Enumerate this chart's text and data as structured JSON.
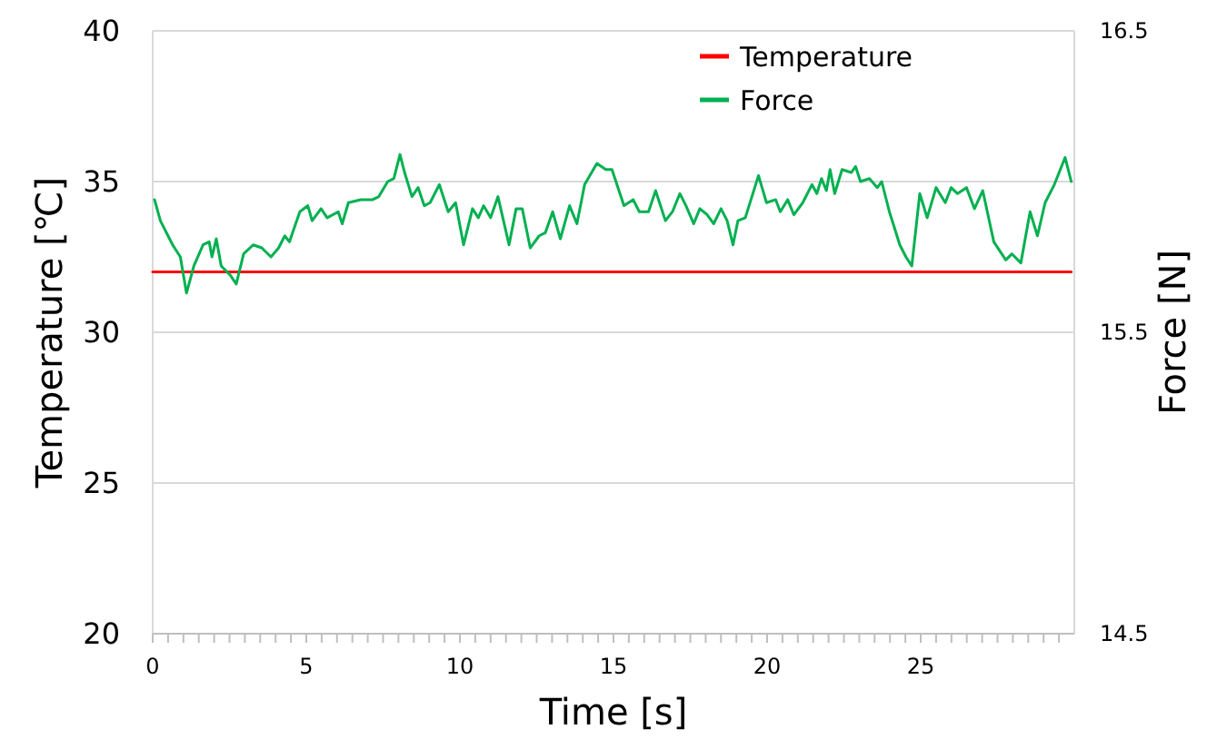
{
  "chart_data": {
    "type": "line",
    "xlabel": "Time [s]",
    "ylabel": "Temperature [℃]",
    "y2label": "Force [N]",
    "xlim": [
      0,
      30
    ],
    "xticks": [
      0,
      {
        "value": 0.5,
        "label": null
      },
      {
        "value": 1,
        "label": null
      },
      {
        "value": 1.5,
        "label": null
      },
      {
        "value": 2,
        "label": null
      },
      {
        "value": 2.5,
        "label": null
      },
      {
        "value": 3,
        "label": null
      },
      {
        "value": 3.5,
        "label": null
      },
      {
        "value": 4,
        "label": null
      },
      {
        "value": 4.5,
        "label": null
      },
      5,
      {
        "value": 5.5,
        "label": null
      },
      {
        "value": 6,
        "label": null
      },
      {
        "value": 6.5,
        "label": null
      },
      {
        "value": 7,
        "label": null
      },
      {
        "value": 7.5,
        "label": null
      },
      {
        "value": 8,
        "label": null
      },
      {
        "value": 8.5,
        "label": null
      },
      {
        "value": 9,
        "label": null
      },
      {
        "value": 9.5,
        "label": null
      },
      10,
      {
        "value": 10.5,
        "label": null
      },
      {
        "value": 11,
        "label": null
      },
      {
        "value": 11.5,
        "label": null
      },
      {
        "value": 12,
        "label": null
      },
      {
        "value": 12.5,
        "label": null
      },
      {
        "value": 13,
        "label": null
      },
      {
        "value": 13.5,
        "label": null
      },
      {
        "value": 14,
        "label": null
      },
      {
        "value": 14.5,
        "label": null
      },
      15,
      {
        "value": 15.5,
        "label": null
      },
      {
        "value": 16,
        "label": null
      },
      {
        "value": 16.5,
        "label": null
      },
      {
        "value": 17,
        "label": null
      },
      {
        "value": 17.5,
        "label": null
      },
      {
        "value": 18,
        "label": null
      },
      {
        "value": 18.5,
        "label": null
      },
      {
        "value": 19,
        "label": null
      },
      {
        "value": 19.5,
        "label": null
      },
      20,
      {
        "value": 20.5,
        "label": null
      },
      {
        "value": 21,
        "label": null
      },
      {
        "value": 21.5,
        "label": null
      },
      {
        "value": 22,
        "label": null
      },
      {
        "value": 22.5,
        "label": null
      },
      {
        "value": 23,
        "label": null
      },
      {
        "value": 23.5,
        "label": null
      },
      {
        "value": 24,
        "label": null
      },
      {
        "value": 24.5,
        "label": null
      },
      25,
      {
        "value": 25.5,
        "label": null
      },
      {
        "value": 26,
        "label": null
      },
      {
        "value": 26.5,
        "label": null
      },
      {
        "value": 27,
        "label": null
      },
      {
        "value": 27.5,
        "label": null
      },
      {
        "value": 28,
        "label": null
      },
      {
        "value": 28.5,
        "label": null
      },
      {
        "value": 29,
        "label": null
      },
      {
        "value": 29.5,
        "label": null
      }
    ],
    "ylim": [
      20,
      40
    ],
    "yticks": [
      20,
      25,
      30,
      35,
      40
    ],
    "y2lim": [
      14.5,
      16.5
    ],
    "y2ticks": [
      14.5,
      15.5,
      16.5
    ],
    "grid": "y",
    "legend": "top right",
    "marker": "none",
    "line_style": "solid",
    "series": [
      {
        "name": "Temperature",
        "color": "#ff0000",
        "x": [
          0,
          5,
          10,
          15,
          20,
          25,
          29.9
        ],
        "values": [
          32,
          32,
          32,
          32,
          32,
          32,
          32
        ]
      },
      {
        "name": "Force",
        "color": "#00b050",
        "axis": "y2",
        "x": [
          0.06,
          0.25,
          0.65,
          0.9,
          1.1,
          1.34,
          1.64,
          1.84,
          1.93,
          2.07,
          2.23,
          2.52,
          2.72,
          2.96,
          3.27,
          3.55,
          3.85,
          4.1,
          4.3,
          4.45,
          4.79,
          5.05,
          5.19,
          5.48,
          5.68,
          6.04,
          6.17,
          6.37,
          6.77,
          7.16,
          7.36,
          7.65,
          7.85,
          8.05,
          8.2,
          8.44,
          8.64,
          8.84,
          9.03,
          9.33,
          9.62,
          9.86,
          10.12,
          10.41,
          10.6,
          10.77,
          11.0,
          11.24,
          11.6,
          11.83,
          12.03,
          12.29,
          12.58,
          12.78,
          13.02,
          13.27,
          13.57,
          13.81,
          14.06,
          14.46,
          14.75,
          14.95,
          15.34,
          15.64,
          15.84,
          16.14,
          16.37,
          16.69,
          16.92,
          17.16,
          17.36,
          17.61,
          17.81,
          18.05,
          18.26,
          18.5,
          18.7,
          18.89,
          19.05,
          19.29,
          19.72,
          19.98,
          20.28,
          20.43,
          20.67,
          20.87,
          21.16,
          21.46,
          21.62,
          21.77,
          21.93,
          22.05,
          22.2,
          22.44,
          22.74,
          22.88,
          23.04,
          23.33,
          23.59,
          23.73,
          23.98,
          24.32,
          24.52,
          24.71,
          24.97,
          25.21,
          25.5,
          25.8,
          25.99,
          26.2,
          26.49,
          26.75,
          27.02,
          27.38,
          27.77,
          27.97,
          28.26,
          28.56,
          28.8,
          29.05,
          29.35,
          29.7,
          29.9
        ],
        "values": [
          15.94,
          15.87,
          15.79,
          15.75,
          15.63,
          15.72,
          15.79,
          15.8,
          15.75,
          15.81,
          15.72,
          15.69,
          15.66,
          15.76,
          15.79,
          15.78,
          15.75,
          15.78,
          15.82,
          15.8,
          15.9,
          15.92,
          15.87,
          15.91,
          15.88,
          15.9,
          15.86,
          15.93,
          15.94,
          15.94,
          15.95,
          16.0,
          16.01,
          16.09,
          16.03,
          15.95,
          15.98,
          15.92,
          15.93,
          15.99,
          15.9,
          15.93,
          15.79,
          15.91,
          15.88,
          15.92,
          15.88,
          15.95,
          15.79,
          15.91,
          15.91,
          15.78,
          15.82,
          15.83,
          15.9,
          15.81,
          15.92,
          15.86,
          15.99,
          16.06,
          16.04,
          16.04,
          15.92,
          15.94,
          15.9,
          15.9,
          15.97,
          15.87,
          15.9,
          15.96,
          15.92,
          15.86,
          15.91,
          15.89,
          15.86,
          15.91,
          15.87,
          15.79,
          15.87,
          15.88,
          16.02,
          15.93,
          15.94,
          15.9,
          15.94,
          15.89,
          15.93,
          15.99,
          15.96,
          16.01,
          15.97,
          16.04,
          15.96,
          16.04,
          16.03,
          16.05,
          16.0,
          16.01,
          15.98,
          16.0,
          15.9,
          15.79,
          15.75,
          15.72,
          15.96,
          15.88,
          15.98,
          15.93,
          15.98,
          15.96,
          15.98,
          15.91,
          15.97,
          15.8,
          15.74,
          15.76,
          15.73,
          15.9,
          15.82,
          15.93,
          15.99,
          16.08,
          16.0
        ]
      }
    ]
  }
}
